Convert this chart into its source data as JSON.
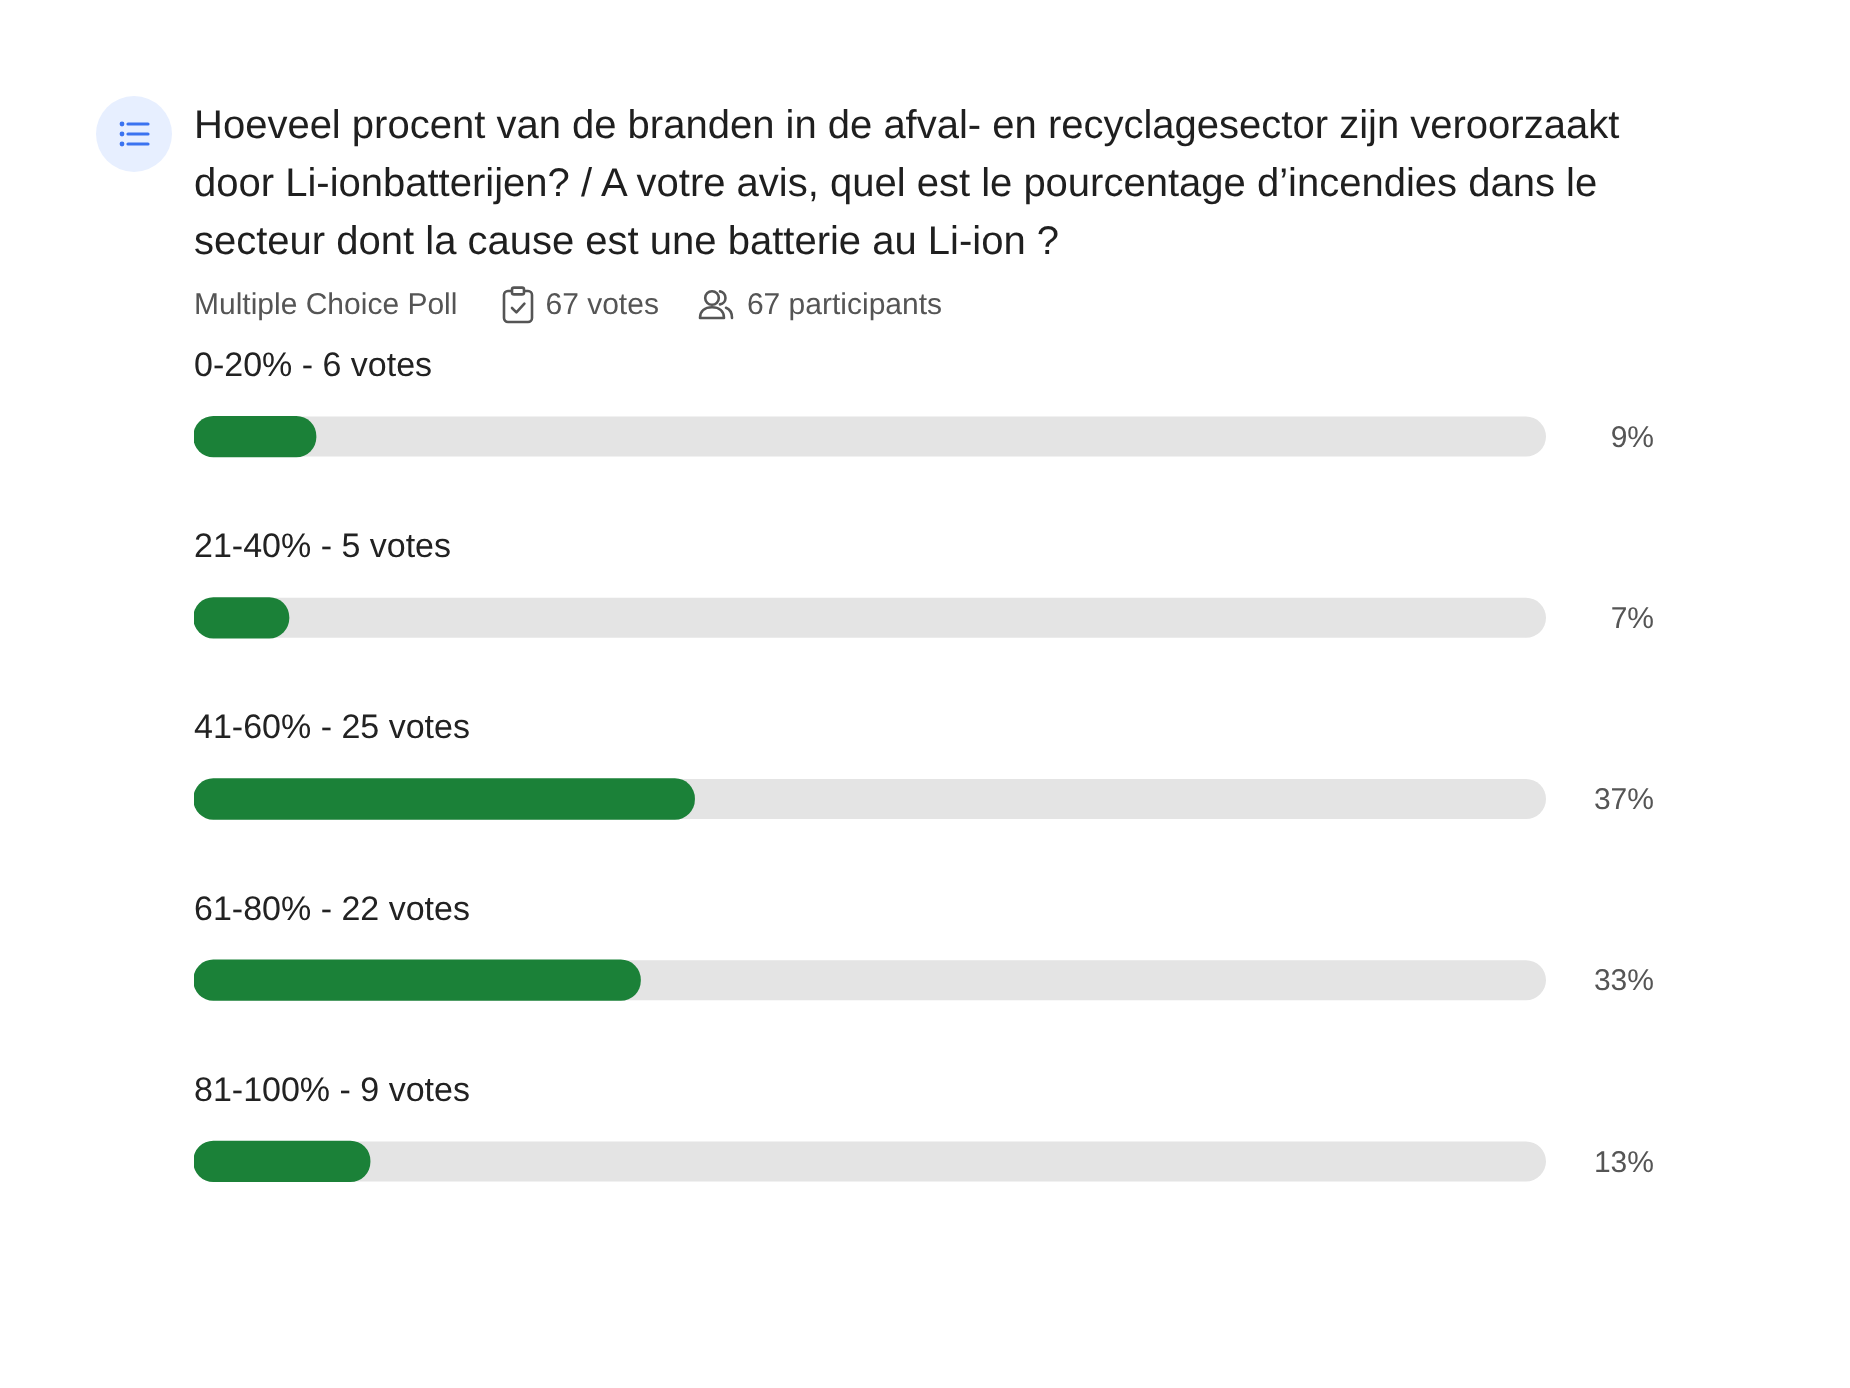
{
  "chart_data": {
    "type": "bar",
    "orientation": "horizontal",
    "title": "Hoeveel procent van de branden in de afval- en recyclagesector zijn veroorzaakt door Li-ionbatterijen? / A votre avis, quel est le pourcentage d’incendies dans le secteur dont la cause est une batterie au Li-ion ?",
    "subtitle": "Multiple Choice Poll",
    "annotations": [
      "67 votes",
      "67 participants"
    ],
    "categories": [
      "0-20% - 6 votes",
      "21-40% - 5 votes",
      "41-60% - 25 votes",
      "61-80% - 22 votes",
      "81-100% - 9 votes"
    ],
    "values": [
      9,
      7,
      37,
      33,
      13
    ],
    "value_labels": [
      "9%",
      "7%",
      "37%",
      "33%",
      "13%"
    ],
    "color": "#1b8138",
    "xlim": [
      0,
      100
    ],
    "tick_labels": "y"
  }
}
